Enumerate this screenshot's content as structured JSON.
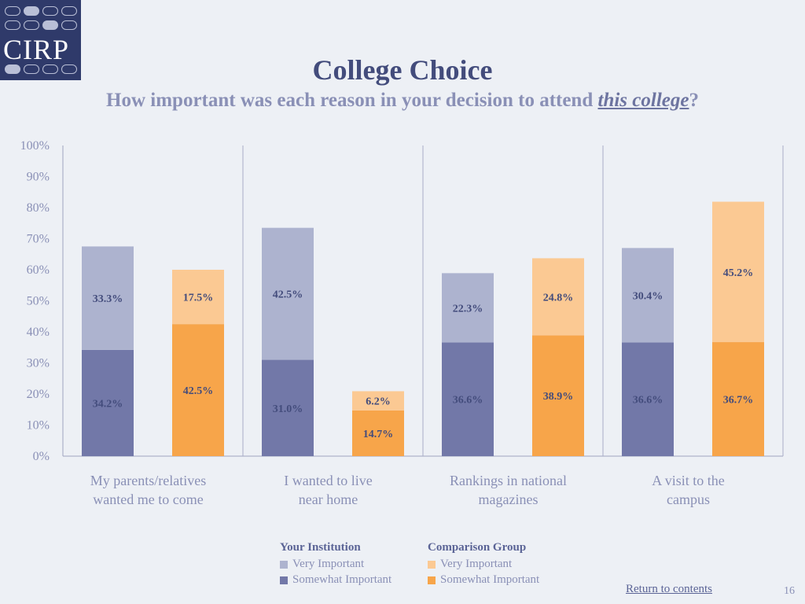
{
  "logo": {
    "text": "CIRP"
  },
  "header": {
    "title": "College Choice",
    "subtitle_pre": "How important was each reason in your decision to attend ",
    "subtitle_em": "this college",
    "subtitle_post": "?"
  },
  "chart_data": {
    "type": "bar",
    "stacked": true,
    "categories": [
      [
        "My parents/relatives",
        "wanted me to come"
      ],
      [
        "I wanted to live",
        "near home"
      ],
      [
        "Rankings in national",
        "magazines"
      ],
      [
        "A visit to the",
        "campus"
      ]
    ],
    "groups": [
      {
        "name": "Your Institution",
        "series": [
          {
            "name": "Somewhat Important",
            "values": [
              34.2,
              31.0,
              36.6,
              36.6
            ],
            "color": "#7278a8"
          },
          {
            "name": "Very Important",
            "values": [
              33.3,
              42.5,
              22.3,
              30.4
            ],
            "color": "#adb3cf"
          }
        ]
      },
      {
        "name": "Comparison Group",
        "series": [
          {
            "name": "Somewhat Important",
            "values": [
              42.5,
              14.7,
              38.9,
              36.7
            ],
            "color": "#f7a54a"
          },
          {
            "name": "Very Important",
            "values": [
              17.5,
              6.2,
              24.8,
              45.2
            ],
            "color": "#fbc993"
          }
        ]
      }
    ],
    "ylim": [
      0,
      100
    ],
    "yticks": [
      "0%",
      "10%",
      "20%",
      "30%",
      "40%",
      "50%",
      "60%",
      "70%",
      "80%",
      "90%",
      "100%"
    ],
    "value_suffix": "%"
  },
  "legend": {
    "groups": [
      {
        "title": "Your Institution",
        "items": [
          {
            "label": "Very Important",
            "color": "#adb3cf"
          },
          {
            "label": "Somewhat Important",
            "color": "#7278a8"
          }
        ]
      },
      {
        "title": "Comparison Group",
        "items": [
          {
            "label": "Very Important",
            "color": "#fbc993"
          },
          {
            "label": "Somewhat Important",
            "color": "#f7a54a"
          }
        ]
      }
    ]
  },
  "footer": {
    "return_link": "Return to contents",
    "page_number": "16"
  }
}
